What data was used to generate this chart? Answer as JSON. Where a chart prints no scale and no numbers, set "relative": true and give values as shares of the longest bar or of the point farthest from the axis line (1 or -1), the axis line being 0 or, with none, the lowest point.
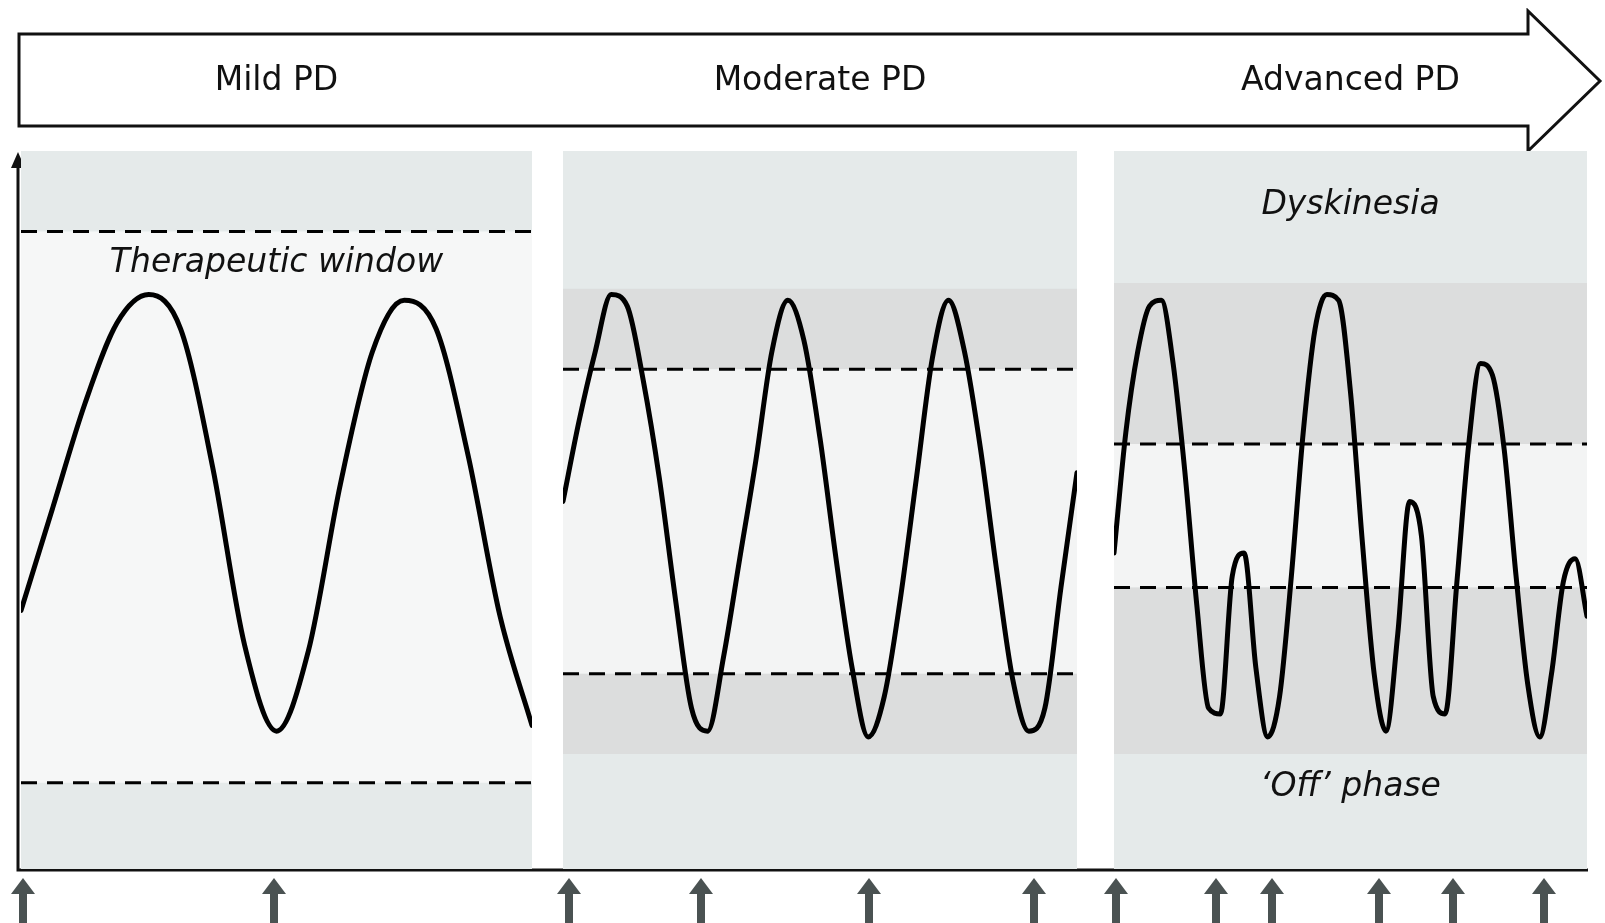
{
  "chart_data": [
    {
      "type": "line",
      "title": "Mild PD",
      "relative": true,
      "marker": "none",
      "categories": [
        null,
        null,
        null,
        null,
        null,
        null,
        null,
        null,
        null,
        null,
        null,
        null,
        null,
        null,
        null,
        null,
        null
      ],
      "series": [
        {
          "color": "#000000",
          "values": [
            0.45,
            0.63,
            0.81,
            0.95,
            1,
            0.94,
            0.7,
            0.39,
            0.24,
            0.38,
            0.67,
            0.9,
            0.99,
            0.94,
            0.72,
            0.44,
            0.25
          ]
        }
      ],
      "bands": [
        {
          "axis": "y",
          "from": 0.15,
          "to": 1.11,
          "label": "Therapeutic window",
          "color": "#f6f7f7"
        }
      ],
      "ref_lines": [
        {
          "axis": "y",
          "value": 1.11,
          "line_style": "dashed",
          "color": "#000000"
        },
        {
          "axis": "y",
          "value": 0.15,
          "line_style": "dashed",
          "color": "#000000"
        }
      ]
    },
    {
      "type": "line",
      "title": "Moderate PD",
      "relative": true,
      "marker": "none",
      "categories": [
        null,
        null,
        null,
        null,
        null,
        null,
        null,
        null,
        null,
        null,
        null,
        null,
        null,
        null,
        null,
        null,
        null,
        null,
        null,
        null,
        null,
        null,
        null,
        null,
        null,
        null,
        null,
        null,
        null,
        null,
        null,
        null,
        null
      ],
      "series": [
        {
          "color": "#000000",
          "values": [
            0.64,
            0.78,
            0.9,
            1,
            0.98,
            0.85,
            0.68,
            0.47,
            0.28,
            0.24,
            0.37,
            0.54,
            0.71,
            0.9,
            0.99,
            0.92,
            0.75,
            0.54,
            0.35,
            0.23,
            0.3,
            0.47,
            0.68,
            0.89,
            0.99,
            0.9,
            0.73,
            0.52,
            0.33,
            0.24,
            0.28,
            0.49,
            0.69
          ]
        }
      ],
      "bands": [
        {
          "axis": "y",
          "from": 0.87,
          "to": 1.01,
          "color": "#dcdddd"
        },
        {
          "axis": "y",
          "from": 0.34,
          "to": 0.87,
          "color": "#f3f4f4"
        },
        {
          "axis": "y",
          "from": 0.2,
          "to": 0.34,
          "color": "#dcdddd"
        }
      ],
      "ref_lines": [
        {
          "axis": "y",
          "value": 0.87,
          "line_style": "dashed",
          "color": "#000000"
        },
        {
          "axis": "y",
          "value": 0.34,
          "line_style": "dashed",
          "color": "#000000"
        }
      ]
    },
    {
      "type": "line",
      "title": "Advanced PD",
      "relative": true,
      "marker": "none",
      "categories": [
        null,
        null,
        null,
        null,
        null,
        null,
        null,
        null,
        null,
        null,
        null,
        null,
        null,
        null,
        null,
        null,
        null,
        null,
        null,
        null,
        null,
        null,
        null,
        null,
        null,
        null,
        null,
        null,
        null,
        null,
        null,
        null,
        null,
        null,
        null,
        null,
        null,
        null,
        null,
        null,
        null
      ],
      "series": [
        {
          "color": "#000000",
          "values": [
            0.55,
            0.76,
            0.9,
            0.98,
            0.99,
            0.88,
            0.69,
            0.46,
            0.28,
            0.27,
            0.51,
            0.55,
            0.35,
            0.23,
            0.3,
            0.51,
            0.76,
            0.94,
            1,
            0.99,
            0.83,
            0.57,
            0.34,
            0.24,
            0.41,
            0.64,
            0.58,
            0.3,
            0.27,
            0.5,
            0.74,
            0.88,
            0.86,
            0.73,
            0.51,
            0.32,
            0.23,
            0.34,
            0.5,
            0.54,
            0.44
          ]
        }
      ],
      "bands": [
        {
          "axis": "y",
          "from": 0.74,
          "to": 1.02,
          "color": "#dcdddd"
        },
        {
          "axis": "y",
          "from": 0.49,
          "to": 0.74,
          "color": "#f3f4f4"
        },
        {
          "axis": "y",
          "from": 0.2,
          "to": 0.49,
          "color": "#dcdddd"
        }
      ],
      "ref_lines": [
        {
          "axis": "y",
          "value": 0.74,
          "line_style": "dashed",
          "color": "#000000"
        },
        {
          "axis": "y",
          "value": 0.49,
          "line_style": "dashed",
          "color": "#000000"
        }
      ],
      "annotations": [
        "Dyskinesia",
        "‘Off’ phase"
      ]
    }
  ]
}
